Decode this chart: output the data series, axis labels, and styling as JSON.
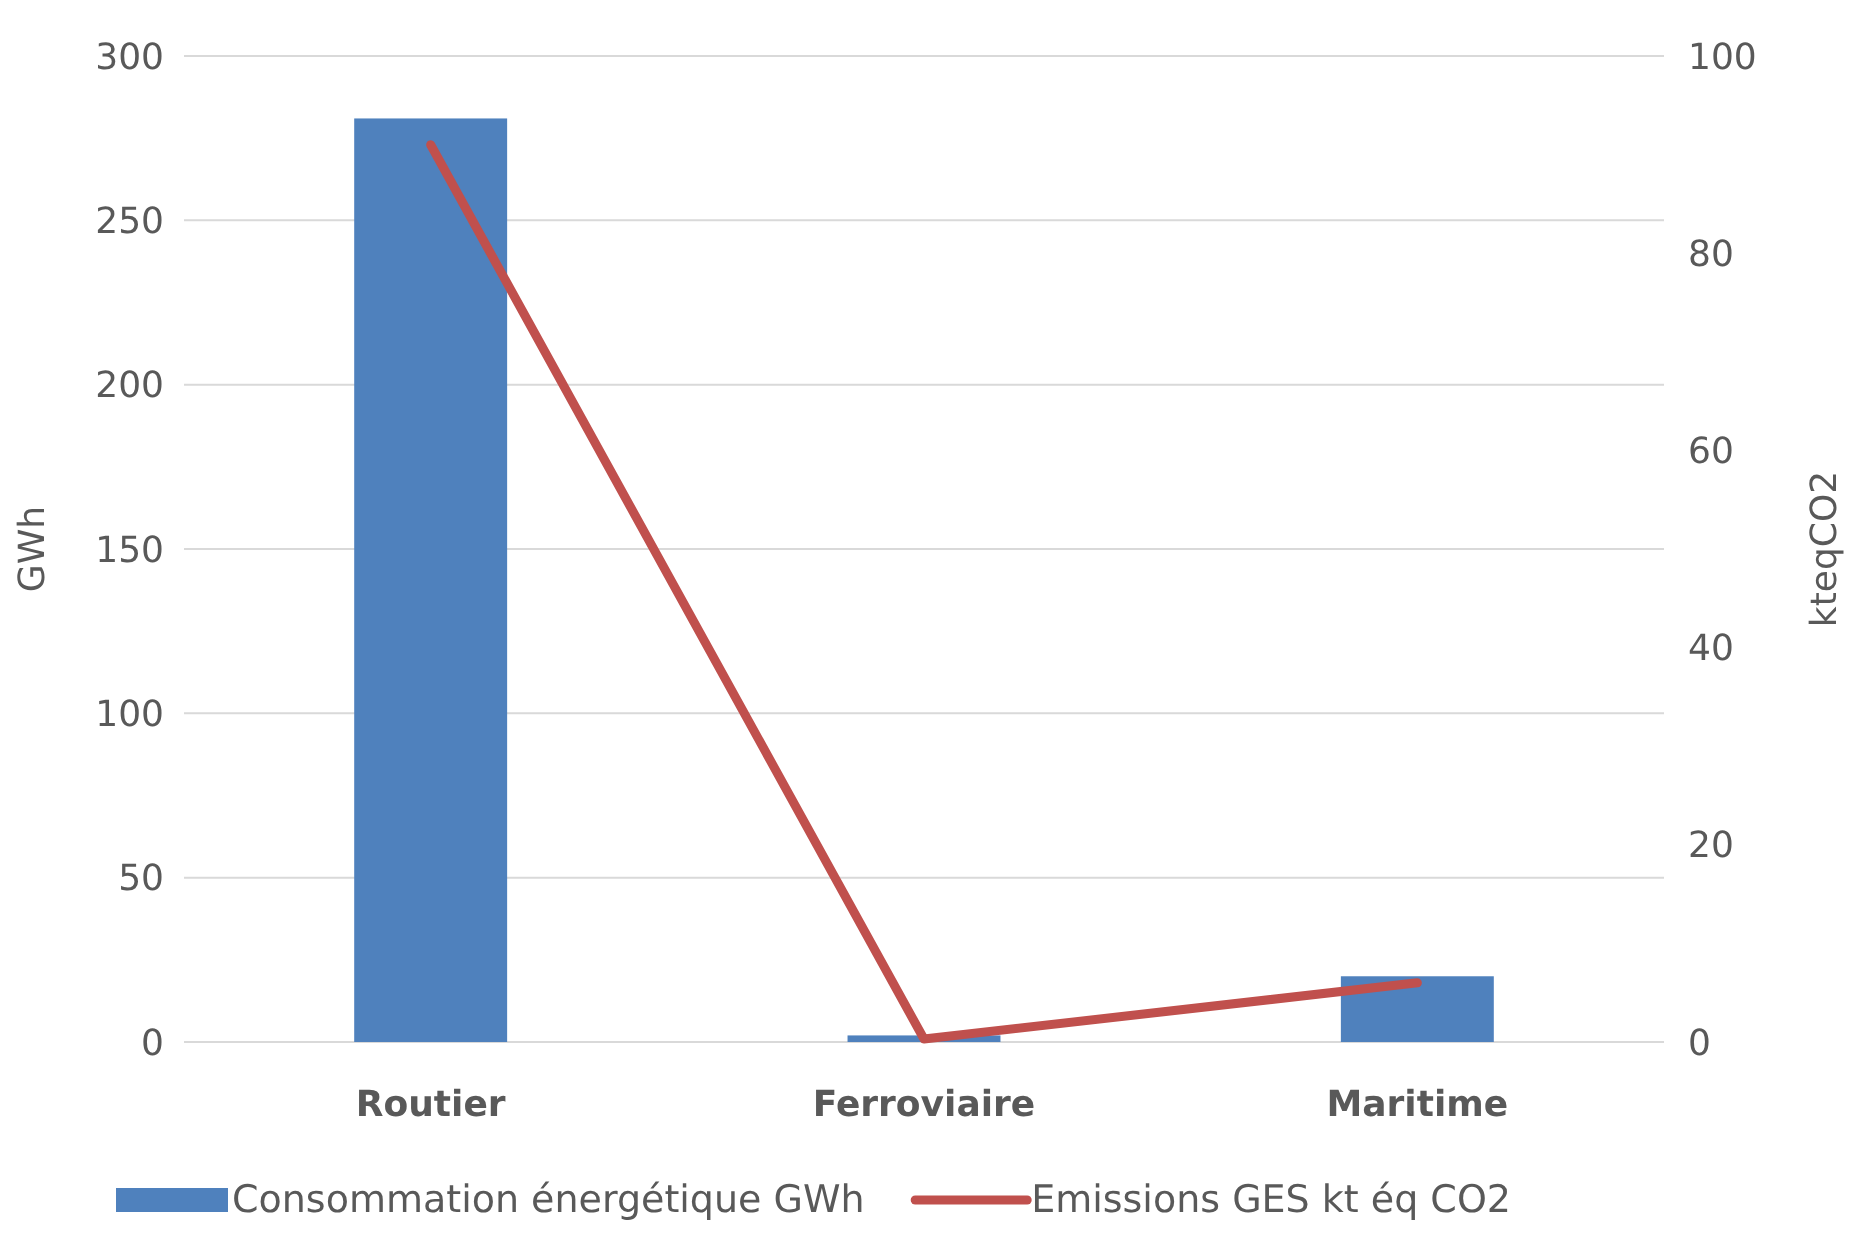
{
  "chart_data": {
    "type": "bar",
    "categories": [
      "Routier",
      "Ferroviaire",
      "Maritime"
    ],
    "ylabel": "GWh",
    "y2label": "kteqCO2",
    "series": [
      {
        "name": "Consommation énergétique GWh",
        "color": "#4f81bd",
        "values": [
          281,
          2,
          20
        ]
      },
      {
        "name": "Emissions GES kt éq CO2",
        "type": "line",
        "axis": "y2",
        "color": "#c0504d",
        "values": [
          91,
          0.3,
          6
        ]
      }
    ],
    "ylim": [
      0,
      300
    ],
    "yticks": [
      0,
      50,
      100,
      150,
      200,
      250,
      300
    ],
    "y2lim": [
      0,
      100
    ],
    "y2ticks": [
      0,
      20,
      40,
      60,
      80,
      100
    ],
    "grid": "y",
    "legend": "bottom"
  }
}
